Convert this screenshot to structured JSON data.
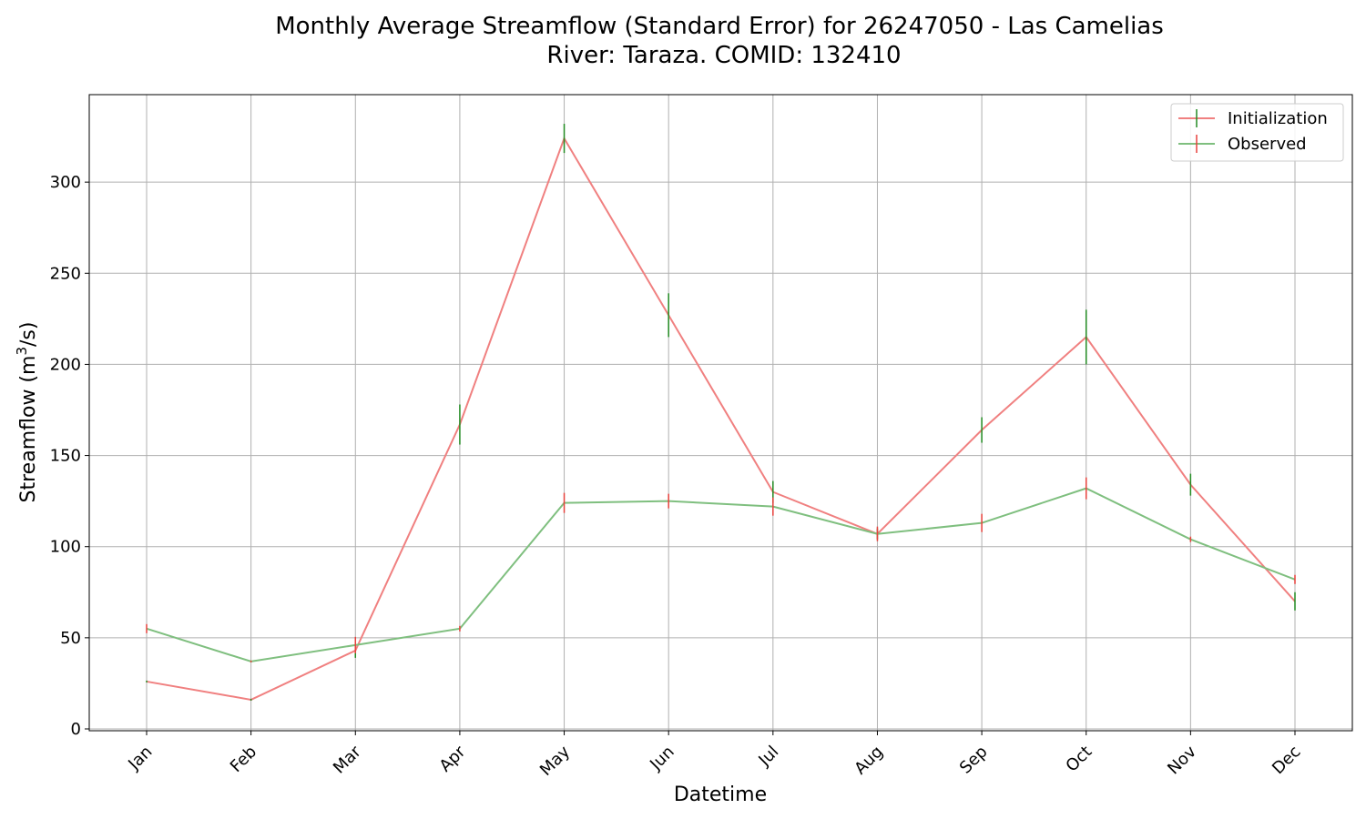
{
  "chart_data": {
    "type": "line",
    "title_line1": "Monthly Average Streamflow (Standard Error) for 26247050 - Las Camelias",
    "title_line2": "River: Taraza. COMID: 132410",
    "xlabel": "Datetime",
    "ylabel_main": "Streamflow (m",
    "ylabel_sup": "3",
    "ylabel_end": "/s)",
    "categories": [
      "Jan",
      "Feb",
      "Mar",
      "Apr",
      "May",
      "Jun",
      "Jul",
      "Aug",
      "Sep",
      "Oct",
      "Nov",
      "Dec"
    ],
    "ylim": [
      -1,
      348
    ],
    "yticks": [
      0,
      50,
      100,
      150,
      200,
      250,
      300
    ],
    "grid": true,
    "legend_position": "top-right",
    "series": [
      {
        "name": "Initialization",
        "color": "#f08080",
        "errorbar_color": "#228b22",
        "values": [
          26,
          16,
          43,
          167,
          324,
          227,
          130,
          107,
          164,
          215,
          134,
          70
        ],
        "errors": [
          0.5,
          0.5,
          4,
          11,
          8,
          12,
          6,
          3,
          7,
          15,
          6,
          5
        ]
      },
      {
        "name": "Observed",
        "color": "#7fbf7f",
        "errorbar_color": "#e8413c",
        "values": [
          55,
          37,
          46,
          55,
          124,
          125,
          122,
          107,
          113,
          132,
          104,
          82
        ],
        "errors": [
          2.5,
          0.5,
          4.5,
          1.5,
          5.5,
          4,
          5,
          4,
          5,
          6,
          1.5,
          2.5
        ]
      }
    ]
  }
}
